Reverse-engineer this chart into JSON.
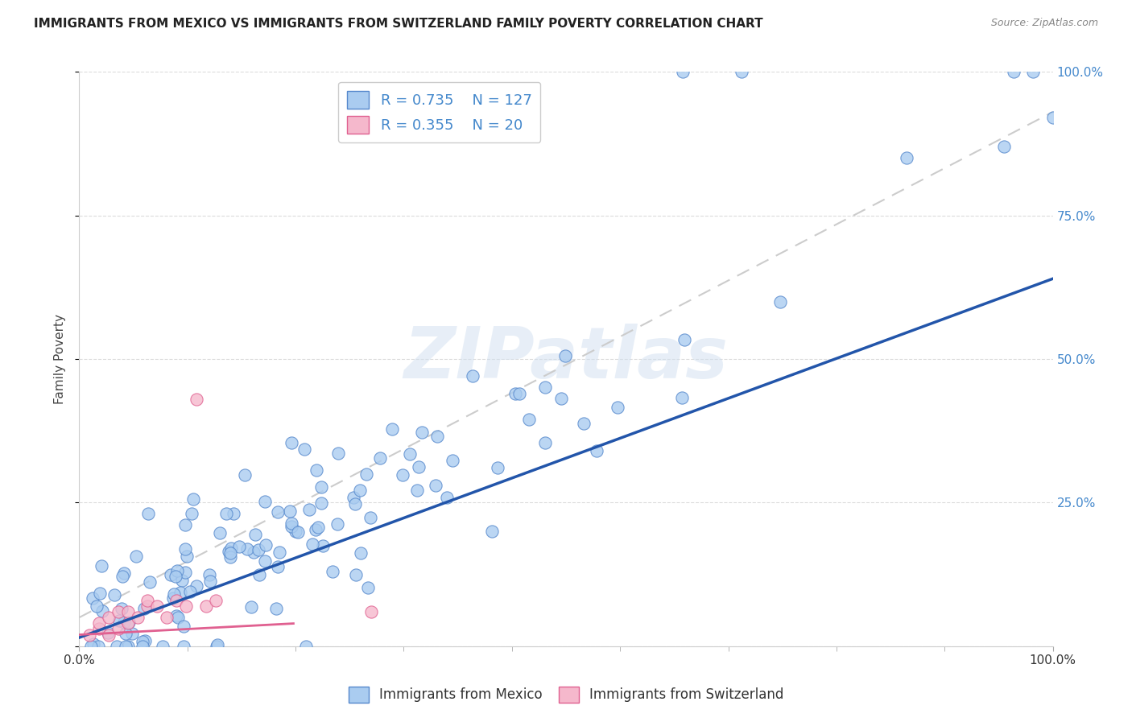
{
  "title": "IMMIGRANTS FROM MEXICO VS IMMIGRANTS FROM SWITZERLAND FAMILY POVERTY CORRELATION CHART",
  "source": "Source: ZipAtlas.com",
  "ylabel": "Family Poverty",
  "xlabel": "",
  "xlim": [
    0,
    1
  ],
  "ylim": [
    0,
    1
  ],
  "xtick_positions": [
    0.0,
    1.0
  ],
  "xtick_labels": [
    "0.0%",
    "100.0%"
  ],
  "ytick_positions": [
    0.0,
    0.25,
    0.5,
    0.75,
    1.0
  ],
  "yticklabels_right": [
    "",
    "25.0%",
    "50.0%",
    "75.0%",
    "100.0%"
  ],
  "mexico_color": "#aaccf0",
  "mexico_edge": "#5588cc",
  "switzerland_color": "#f5b8cc",
  "switzerland_edge": "#e06090",
  "trendline_mexico_color": "#2255aa",
  "trendline_switzerland_color": "#e06090",
  "R_mexico": 0.735,
  "N_mexico": 127,
  "R_switzerland": 0.355,
  "N_switzerland": 20,
  "legend_label_mexico": "Immigrants from Mexico",
  "legend_label_switzerland": "Immigrants from Switzerland",
  "background_color": "#ffffff",
  "grid_color": "#cccccc",
  "watermark_text": "ZIPatlas",
  "watermark_color": "#d0dff0",
  "right_label_color": "#4488cc"
}
